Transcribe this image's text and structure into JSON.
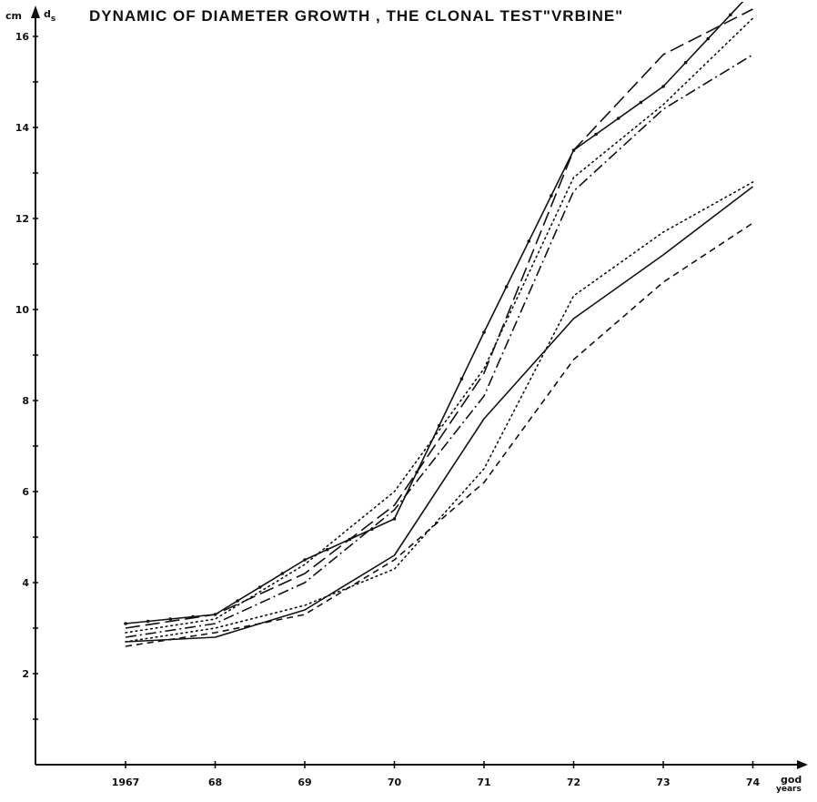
{
  "chart_data": {
    "type": "line",
    "title": "DYNAMIC OF DIAMETER GROWTH , THE CLONAL TEST\"VRBINE\"",
    "ylabel_unit": "cm",
    "ylabel": "d",
    "ylabel_sub": "s",
    "xlabel_line1": "god",
    "xlabel_line2": "years",
    "x_tick_labels": [
      "1967",
      "68",
      "69",
      "70",
      "71",
      "72",
      "73",
      "74"
    ],
    "x": [
      1967,
      1968,
      1969,
      1970,
      1971,
      1972,
      1973,
      1974
    ],
    "y_ticks": [
      2,
      4,
      6,
      8,
      10,
      12,
      14,
      16
    ],
    "ylim": [
      0,
      16.6
    ],
    "xlim": [
      1966,
      1975
    ],
    "grid": false,
    "series": [
      {
        "style": "solid",
        "markers": true,
        "values": [
          3.1,
          3.3,
          4.5,
          5.4,
          9.5,
          13.5,
          14.9,
          17.0
        ]
      },
      {
        "style": "longdash",
        "markers": false,
        "values": [
          3.0,
          3.3,
          4.2,
          5.7,
          8.6,
          13.5,
          15.6,
          16.6
        ]
      },
      {
        "style": "dotted",
        "markers": false,
        "values": [
          2.9,
          3.2,
          4.4,
          6.0,
          8.7,
          12.9,
          14.5,
          16.4
        ]
      },
      {
        "style": "dashdot",
        "markers": false,
        "values": [
          2.8,
          3.1,
          4.0,
          5.6,
          8.1,
          12.6,
          14.4,
          15.6
        ]
      },
      {
        "style": "dotted",
        "markers": false,
        "values": [
          2.7,
          3.0,
          3.5,
          4.3,
          6.5,
          10.3,
          11.7,
          12.8
        ]
      },
      {
        "style": "solid",
        "markers": false,
        "values": [
          2.7,
          2.8,
          3.4,
          4.6,
          7.6,
          9.8,
          11.2,
          12.7
        ]
      },
      {
        "style": "shortdash",
        "markers": false,
        "values": [
          2.6,
          2.9,
          3.3,
          4.5,
          6.2,
          8.9,
          10.6,
          11.9
        ]
      }
    ]
  }
}
